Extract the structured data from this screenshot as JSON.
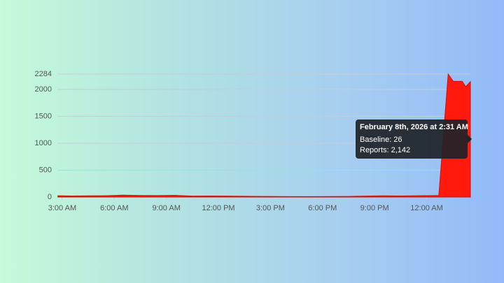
{
  "chart_data": {
    "type": "area",
    "x": [
      2.75,
      3.5,
      4.5,
      5.5,
      6.5,
      7.5,
      8.5,
      9.5,
      10.5,
      11.5,
      12.5,
      13.5,
      14.5,
      15.5,
      16.5,
      17.5,
      18.5,
      19.5,
      20.5,
      21.5,
      22.5,
      23.5,
      24.5,
      24.7,
      25.24,
      25.53,
      26.05,
      26.25,
      26.52
    ],
    "values": [
      25,
      20,
      22,
      25,
      35,
      30,
      28,
      32,
      18,
      20,
      18,
      15,
      12,
      10,
      8,
      8,
      10,
      12,
      18,
      22,
      20,
      25,
      28,
      30,
      2284,
      2150,
      2150,
      2050,
      2142
    ],
    "color": "#ff1a0d",
    "xlim": [
      2.72,
      26.52
    ],
    "xticks": [
      {
        "value": 3,
        "label": "3:00 AM"
      },
      {
        "value": 6,
        "label": "6:00 AM"
      },
      {
        "value": 9,
        "label": "9:00 AM"
      },
      {
        "value": 12,
        "label": "12:00 PM"
      },
      {
        "value": 15,
        "label": "3:00 PM"
      },
      {
        "value": 18,
        "label": "6:00 PM"
      },
      {
        "value": 21,
        "label": "9:00 PM"
      },
      {
        "value": 24,
        "label": "12:00 AM"
      }
    ],
    "ylim": [
      0,
      2284
    ],
    "yticks": [
      0,
      500,
      1000,
      1500,
      2000,
      2284
    ],
    "grid": true,
    "tooltip": {
      "title": "February 8th, 2026 at 2:31 AM",
      "items": [
        "Baseline: 26",
        "Reports: 2,142"
      ]
    }
  }
}
